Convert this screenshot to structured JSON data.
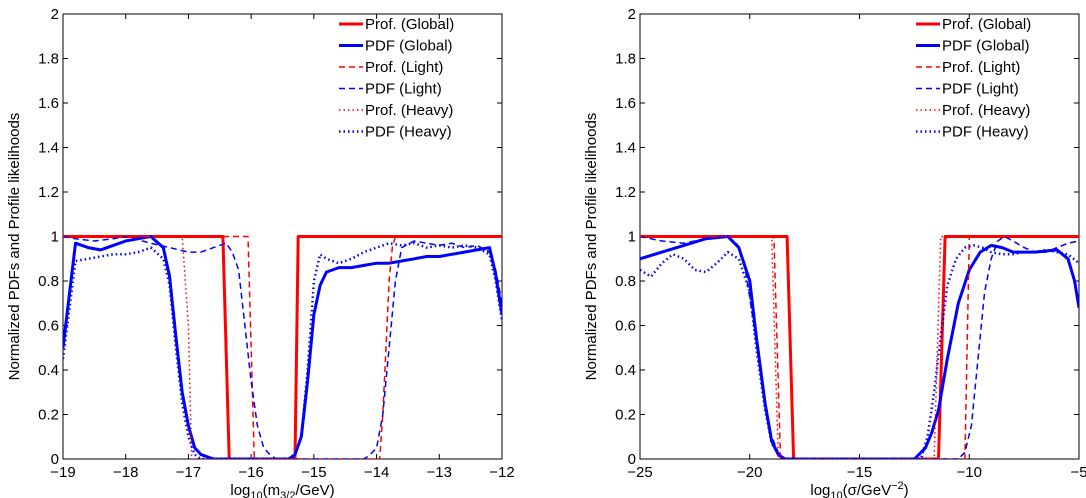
{
  "chart_data": [
    {
      "type": "line",
      "xlabel": "log10(m3/2/GeV)",
      "xlabel_parts": {
        "base": "log",
        "base_sub": "10",
        "open": "(m",
        "sub": "3/2",
        "close": "/GeV)"
      },
      "ylabel": "Normalized PDFs and Profile likelihoods",
      "xlim": [
        -19,
        -12
      ],
      "ylim": [
        0,
        2
      ],
      "xticks": [
        -19,
        -18,
        -17,
        -16,
        -15,
        -14,
        -13,
        -12
      ],
      "xtick_labels": [
        "−19",
        "−18",
        "−17",
        "−16",
        "−15",
        "−14",
        "−13",
        "−12"
      ],
      "yticks": [
        0,
        0.2,
        0.4,
        0.6,
        0.8,
        1,
        1.2,
        1.4,
        1.6,
        1.8,
        2
      ],
      "ytick_labels": [
        "0",
        "0.2",
        "0.4",
        "0.6",
        "0.8",
        "1",
        "1.2",
        "1.4",
        "1.6",
        "1.8",
        "2"
      ],
      "grid": false,
      "legend_position": "top-right",
      "series": [
        {
          "name": "Prof. (Global)",
          "color": "#ff0000",
          "style": "solid",
          "width": 3,
          "x": [
            -19,
            -16.45,
            -16.35,
            -15.3,
            -15.25,
            -12
          ],
          "y": [
            1,
            1,
            0,
            0,
            1,
            1
          ]
        },
        {
          "name": "PDF (Global)",
          "color": "#0000ff",
          "style": "solid",
          "width": 3,
          "x": [
            -19,
            -18.8,
            -18.6,
            -18.4,
            -18.2,
            -18.0,
            -17.8,
            -17.6,
            -17.4,
            -17.3,
            -17.2,
            -17.1,
            -17.0,
            -16.9,
            -16.8,
            -16.6,
            -16.4,
            -16.2,
            -16.0,
            -15.8,
            -15.6,
            -15.4,
            -15.3,
            -15.2,
            -15.1,
            -15.0,
            -14.9,
            -14.8,
            -14.6,
            -14.4,
            -14.2,
            -14.0,
            -13.8,
            -13.6,
            -13.4,
            -13.2,
            -13.0,
            -12.8,
            -12.6,
            -12.4,
            -12.2,
            -12.1,
            -12.0
          ],
          "y": [
            0.5,
            0.97,
            0.95,
            0.94,
            0.96,
            0.98,
            0.99,
            1.0,
            0.95,
            0.82,
            0.55,
            0.3,
            0.15,
            0.05,
            0.02,
            0.0,
            0.0,
            0.0,
            0.0,
            0.0,
            0.0,
            0.0,
            0.02,
            0.1,
            0.35,
            0.65,
            0.78,
            0.84,
            0.86,
            0.86,
            0.87,
            0.88,
            0.88,
            0.89,
            0.9,
            0.91,
            0.91,
            0.92,
            0.93,
            0.94,
            0.95,
            0.83,
            0.65
          ]
        },
        {
          "name": "Prof. (Light)",
          "color": "#ff0000",
          "style": "dashed",
          "width": 1.5,
          "x": [
            -19,
            -16.05,
            -15.95,
            -13.95,
            -13.9,
            -13.85,
            -13.8,
            -13.75,
            -13.7,
            -12
          ],
          "y": [
            1,
            1,
            0,
            0,
            0.2,
            0.5,
            0.8,
            0.95,
            1,
            1
          ]
        },
        {
          "name": "PDF (Light)",
          "color": "#0000ff",
          "style": "dashed",
          "width": 1.5,
          "x": [
            -19,
            -18.8,
            -18.5,
            -18.2,
            -18.0,
            -17.6,
            -17.3,
            -17.0,
            -16.8,
            -16.6,
            -16.4,
            -16.3,
            -16.2,
            -16.1,
            -16.0,
            -15.9,
            -15.8,
            -15.7,
            -15.6,
            -15.4,
            -14.2,
            -14.1,
            -14.0,
            -13.9,
            -13.8,
            -13.7,
            -13.6,
            -13.4,
            -13.2,
            -13.0,
            -12.8,
            -12.6,
            -12.4,
            -12.2,
            -12.1,
            -12.0
          ],
          "y": [
            1,
            0.99,
            0.98,
            0.99,
            1.0,
            0.97,
            0.95,
            0.93,
            0.93,
            0.95,
            0.97,
            0.93,
            0.85,
            0.6,
            0.35,
            0.15,
            0.05,
            0.02,
            0.0,
            0.0,
            0.0,
            0.02,
            0.05,
            0.2,
            0.5,
            0.8,
            0.95,
            0.98,
            0.97,
            0.96,
            0.97,
            0.95,
            0.96,
            0.93,
            0.85,
            0.7
          ]
        },
        {
          "name": "Prof. (Heavy)",
          "color": "#ff0000",
          "style": "dotted",
          "width": 1.5,
          "x": [
            -19,
            -17.1,
            -17.0,
            -16.95,
            -15.3,
            -15.25,
            -12
          ],
          "y": [
            1,
            1,
            0.6,
            0,
            0,
            1,
            1
          ]
        },
        {
          "name": "PDF (Heavy)",
          "color": "#0000ff",
          "style": "dotted",
          "width": 2.5,
          "x": [
            -19,
            -18.8,
            -18.6,
            -18.4,
            -18.2,
            -18.0,
            -17.8,
            -17.6,
            -17.4,
            -17.3,
            -17.2,
            -17.1,
            -17.0,
            -16.9,
            -16.8,
            -16.6,
            -16.4,
            -16.2,
            -16.0,
            -15.8,
            -15.6,
            -15.4,
            -15.3,
            -15.2,
            -15.1,
            -15.0,
            -14.9,
            -14.8,
            -14.6,
            -14.4,
            -14.2,
            -14.0,
            -13.8,
            -13.6,
            -13.4,
            -13.2,
            -13.0,
            -12.8,
            -12.6,
            -12.4,
            -12.2,
            -12.1,
            -12.0
          ],
          "y": [
            0.45,
            0.89,
            0.9,
            0.91,
            0.92,
            0.92,
            0.93,
            0.95,
            0.9,
            0.78,
            0.5,
            0.25,
            0.1,
            0.02,
            0.0,
            0.0,
            0.0,
            0.0,
            0.0,
            0.0,
            0.0,
            0.0,
            0.02,
            0.1,
            0.4,
            0.8,
            0.92,
            0.9,
            0.88,
            0.9,
            0.93,
            0.95,
            0.97,
            0.96,
            0.97,
            0.95,
            0.96,
            0.95,
            0.96,
            0.95,
            0.92,
            0.8,
            0.62
          ]
        }
      ]
    },
    {
      "type": "line",
      "xlabel": "log10(σ/GeV^-2)",
      "xlabel_parts": {
        "base": "log",
        "base_sub": "10",
        "open": "(σ/GeV",
        "sup": "−2",
        "close": ")"
      },
      "ylabel": "Normalized PDFs and Profile likelihoods",
      "xlim": [
        -25,
        -5
      ],
      "ylim": [
        0,
        2
      ],
      "xticks": [
        -25,
        -20,
        -15,
        -10,
        -5
      ],
      "xtick_labels": [
        "−25",
        "−20",
        "−15",
        "−10",
        "−5"
      ],
      "yticks": [
        0,
        0.2,
        0.4,
        0.6,
        0.8,
        1,
        1.2,
        1.4,
        1.6,
        1.8,
        2
      ],
      "ytick_labels": [
        "0",
        "0.2",
        "0.4",
        "0.6",
        "0.8",
        "1",
        "1.2",
        "1.4",
        "1.6",
        "1.8",
        "2"
      ],
      "grid": false,
      "legend_position": "top-right",
      "series": [
        {
          "name": "Prof. (Global)",
          "color": "#ff0000",
          "style": "solid",
          "width": 3,
          "x": [
            -25,
            -18.3,
            -18.0,
            -11.4,
            -11.1,
            -5
          ],
          "y": [
            1,
            1,
            0,
            0,
            1,
            1
          ]
        },
        {
          "name": "PDF (Global)",
          "color": "#0000ff",
          "style": "solid",
          "width": 3,
          "x": [
            -25,
            -24,
            -23,
            -22,
            -21,
            -20.5,
            -20,
            -19.7,
            -19.3,
            -19.0,
            -18.7,
            -18.4,
            -18.0,
            -17.5,
            -16,
            -14,
            -12.5,
            -12.0,
            -11.7,
            -11.4,
            -11.0,
            -10.5,
            -10.0,
            -9.5,
            -9.0,
            -8.5,
            -8.0,
            -7.0,
            -6.0,
            -5.5,
            -5.2,
            -5.0
          ],
          "y": [
            0.9,
            0.93,
            0.96,
            0.99,
            1.0,
            0.95,
            0.8,
            0.55,
            0.25,
            0.08,
            0.02,
            0.0,
            0.0,
            0.0,
            0.0,
            0.0,
            0.0,
            0.05,
            0.12,
            0.22,
            0.45,
            0.7,
            0.85,
            0.93,
            0.96,
            0.95,
            0.93,
            0.93,
            0.94,
            0.9,
            0.8,
            0.68
          ]
        },
        {
          "name": "Prof. (Light)",
          "color": "#ff0000",
          "style": "dashed",
          "width": 1.5,
          "x": [
            -25,
            -18.9,
            -18.6,
            -10.2,
            -10.0,
            -5
          ],
          "y": [
            1,
            1,
            0,
            0,
            1,
            1
          ]
        },
        {
          "name": "PDF (Light)",
          "color": "#0000ff",
          "style": "dashed",
          "width": 1.5,
          "x": [
            -25,
            -24,
            -23,
            -22,
            -21,
            -20.6,
            -20.2,
            -19.8,
            -19.4,
            -19.0,
            -18.7,
            -18.4,
            -18.0,
            -17,
            -15,
            -13,
            -11,
            -10.5,
            -10.2,
            -9.9,
            -9.6,
            -9.3,
            -9.0,
            -8.7,
            -8.4,
            -8.0,
            -7.5,
            -7.0,
            -6.5,
            -6.0,
            -5.5,
            -5.0
          ],
          "y": [
            1.0,
            0.98,
            0.97,
            0.99,
            1.0,
            0.97,
            0.85,
            0.6,
            0.3,
            0.1,
            0.03,
            0.0,
            0.0,
            0.0,
            0.0,
            0.0,
            0.0,
            0.0,
            0.03,
            0.15,
            0.45,
            0.75,
            0.9,
            0.98,
            1.0,
            0.98,
            0.95,
            0.93,
            0.93,
            0.95,
            0.97,
            0.98
          ]
        },
        {
          "name": "Prof. (Heavy)",
          "color": "#ff0000",
          "style": "dotted",
          "width": 1.5,
          "x": [
            -25,
            -19.0,
            -18.7,
            -11.6,
            -11.3,
            -5
          ],
          "y": [
            1,
            1,
            0,
            0,
            1,
            1
          ]
        },
        {
          "name": "PDF (Heavy)",
          "color": "#0000ff",
          "style": "dotted",
          "width": 2.5,
          "x": [
            -25,
            -24.5,
            -24,
            -23.5,
            -23,
            -22.5,
            -22,
            -21.5,
            -21,
            -20.5,
            -20,
            -19.7,
            -19.3,
            -19.0,
            -18.7,
            -18.4,
            -18.0,
            -17,
            -15,
            -13,
            -12.2,
            -11.9,
            -11.6,
            -11.3,
            -11.0,
            -10.6,
            -10.2,
            -9.8,
            -9.4,
            -9.0,
            -8.5,
            -8.0,
            -7.5,
            -7.0,
            -6.5,
            -6.0,
            -5.5,
            -5.0
          ],
          "y": [
            0.85,
            0.82,
            0.88,
            0.92,
            0.9,
            0.85,
            0.84,
            0.88,
            0.93,
            0.9,
            0.75,
            0.5,
            0.22,
            0.07,
            0.02,
            0.0,
            0.0,
            0.0,
            0.0,
            0.0,
            0.0,
            0.1,
            0.3,
            0.55,
            0.78,
            0.9,
            0.95,
            0.96,
            0.95,
            0.93,
            0.92,
            0.92,
            0.93,
            0.93,
            0.94,
            0.93,
            0.92,
            0.88
          ]
        }
      ]
    }
  ]
}
